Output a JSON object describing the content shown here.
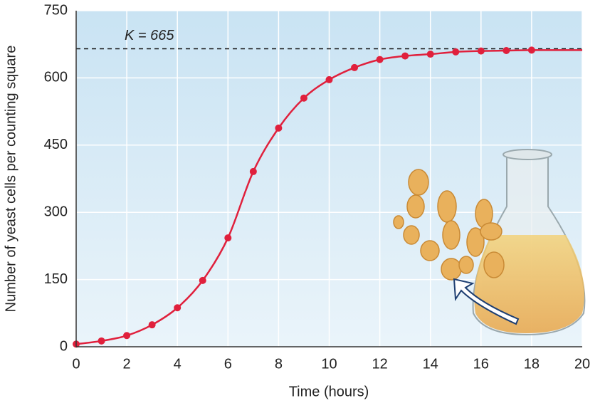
{
  "chart_data": {
    "type": "line",
    "x_label": "Time (hours)",
    "y_label": "Number of yeast cells per counting square",
    "x": [
      0,
      1,
      2,
      3,
      4,
      5,
      6,
      7,
      8,
      9,
      10,
      11,
      12,
      13,
      14,
      15,
      16,
      17,
      18
    ],
    "series": [
      {
        "color": "#e0203c",
        "values": [
          6,
          13,
          25,
          49,
          87,
          148,
          243,
          391,
          488,
          555,
          596,
          623,
          641,
          649,
          653,
          658,
          660,
          661,
          662
        ]
      }
    ],
    "xlim": [
      0,
      20
    ],
    "xticks": [
      0,
      2,
      4,
      6,
      8,
      10,
      12,
      14,
      16,
      18,
      20
    ],
    "ylim": [
      0,
      750
    ],
    "yticks": [
      0,
      150,
      300,
      450,
      600,
      750
    ],
    "grid": true,
    "annotation": {
      "text": "K = 665",
      "value": 665
    }
  }
}
